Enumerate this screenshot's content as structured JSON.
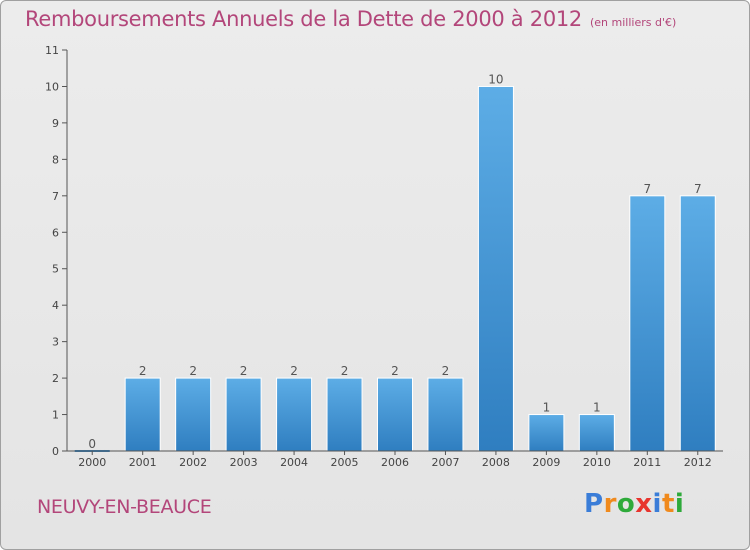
{
  "header": {
    "title": "Remboursements Annuels de la Dette de 2000 à 2012",
    "unit": "(en milliers d'€)"
  },
  "footer": {
    "commune": "NEUVY-EN-BEAUCE",
    "logo_letters": [
      "P",
      "r",
      "o",
      "x",
      "i",
      "t",
      "i"
    ],
    "logo_colors": [
      "#3a7dd8",
      "#f08a1d",
      "#2eaa3a",
      "#e8352e",
      "#3a7dd8",
      "#f08a1d",
      "#2eaa3a"
    ]
  },
  "colors": {
    "title": "#b3467a",
    "bar_light": "#5dade6",
    "bar_dark": "#2f7ec0",
    "axis": "#555555"
  },
  "chart_data": {
    "type": "bar",
    "categories": [
      "2000",
      "2001",
      "2002",
      "2003",
      "2004",
      "2005",
      "2006",
      "2007",
      "2008",
      "2009",
      "2010",
      "2011",
      "2012"
    ],
    "values": [
      0,
      2,
      2,
      2,
      2,
      2,
      2,
      2,
      10,
      1,
      1,
      7,
      7
    ],
    "data_labels": [
      "0",
      "2",
      "2",
      "2",
      "2",
      "2",
      "2",
      "2",
      "10",
      "1",
      "1",
      "7",
      "7"
    ],
    "yticks": [
      0,
      1,
      2,
      3,
      4,
      5,
      6,
      7,
      8,
      9,
      10,
      11
    ],
    "ylim": [
      0,
      11
    ],
    "grid": false,
    "legend": "none"
  }
}
